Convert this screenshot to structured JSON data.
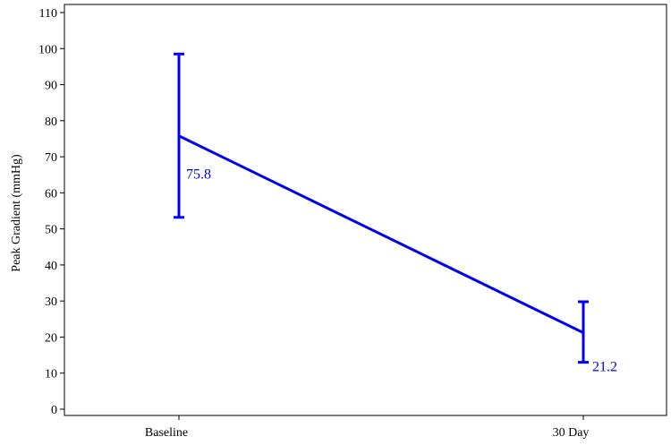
{
  "chart_data": {
    "type": "line",
    "categories": [
      "Baseline",
      "30 Day"
    ],
    "series": [
      {
        "values": [
          75.8,
          21.2
        ],
        "error_low": [
          53.2,
          13.0
        ],
        "error_high": [
          98.5,
          29.8
        ],
        "data_labels": [
          "75.8",
          "21.2"
        ],
        "color": "#0000ee"
      }
    ],
    "title": "",
    "xlabel": "",
    "ylabel": "Peak Gradient (mmHg)",
    "ylim": [
      0,
      110
    ],
    "yticks": [
      0,
      10,
      20,
      30,
      40,
      50,
      60,
      70,
      80,
      90,
      100,
      110
    ],
    "grid": false,
    "legend": "none"
  }
}
